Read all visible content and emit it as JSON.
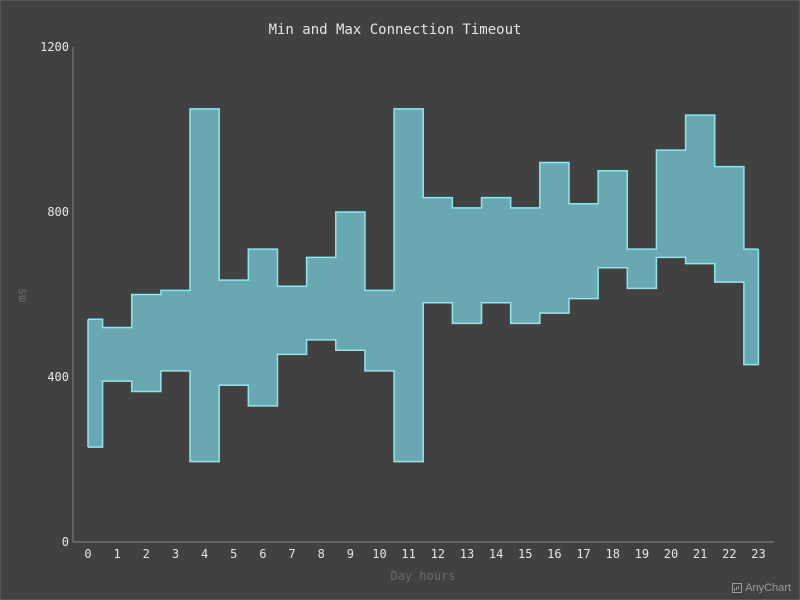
{
  "chart_data": {
    "type": "area",
    "subtype": "step-range-area",
    "title": "Min and Max Connection Timeout",
    "xlabel": "Day hours",
    "ylabel": "ms",
    "categories": [
      "0",
      "1",
      "2",
      "3",
      "4",
      "5",
      "6",
      "7",
      "8",
      "9",
      "10",
      "11",
      "12",
      "13",
      "14",
      "15",
      "16",
      "17",
      "18",
      "19",
      "20",
      "21",
      "22",
      "23"
    ],
    "series": [
      {
        "low": [
          230,
          390,
          365,
          415,
          195,
          380,
          330,
          455,
          490,
          465,
          415,
          195,
          580,
          530,
          580,
          530,
          555,
          590,
          665,
          615,
          690,
          675,
          630,
          430
        ],
        "high": [
          540,
          520,
          600,
          610,
          1050,
          635,
          710,
          620,
          690,
          800,
          610,
          1050,
          835,
          810,
          835,
          810,
          920,
          820,
          900,
          710,
          950,
          1035,
          910,
          710
        ]
      }
    ],
    "ylim": [
      0,
      1200
    ],
    "yticks": [
      "0",
      "400",
      "800",
      "1200"
    ],
    "grid": false,
    "legend": "none",
    "colors": {
      "fill": "#6aa8b1",
      "stroke": "#8fe6ef",
      "axis": "#888888",
      "tick_text": "#e6e6e6",
      "axis_title": "#606d6e",
      "title": "#e6e6e6"
    }
  },
  "credits": {
    "label": "AnyChart"
  }
}
